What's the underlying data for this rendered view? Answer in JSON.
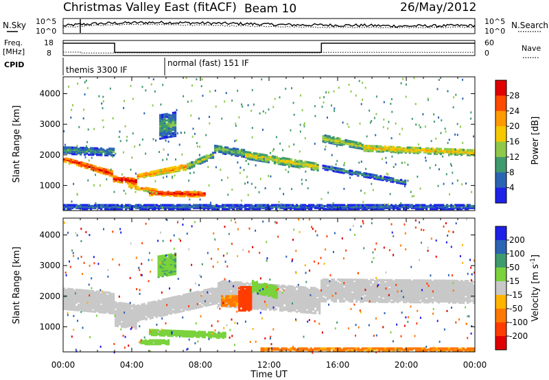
{
  "header": {
    "station": "Christmas Valley East (fitACF)",
    "beam": "Beam 10",
    "date": "26/May/2012"
  },
  "top_panels": {
    "noise": {
      "left_label": "N.Sky",
      "right_label": "N.Search",
      "left_ticks": [
        "10^5",
        "10^0"
      ],
      "right_ticks": [
        "10^5",
        "10^0"
      ],
      "series": [
        {
          "name": "N.Sky",
          "style": "solid",
          "values_log10": [
            2.6,
            3.1,
            3.4,
            3.6,
            3.7,
            3.8,
            3.8,
            3.7,
            3.6,
            3.5,
            3.4,
            3.3,
            3.1,
            3.0,
            2.9,
            2.9,
            2.8,
            2.8,
            2.7,
            2.6,
            2.5,
            2.6,
            2.6,
            2.7,
            2.7
          ]
        },
        {
          "name": "N.Search",
          "style": "dotted",
          "values_log10": [
            2.0,
            2.4,
            2.8,
            3.0,
            3.1,
            3.1,
            3.0,
            2.9,
            2.8,
            2.7,
            2.6,
            2.5,
            2.4,
            2.3,
            2.2,
            2.1,
            2.1,
            2.0,
            2.0,
            1.9,
            1.9,
            2.0,
            2.0,
            2.1,
            2.1
          ]
        }
      ],
      "spike_hour": 1.0
    },
    "frequency": {
      "left_label_line1": "Freq.",
      "left_label_line2": "[MHz]",
      "right_label": "Nave",
      "left_ticks": [
        "18",
        "8"
      ],
      "right_ticks": [
        "60",
        "0"
      ],
      "freq_steps": [
        [
          0,
          16.5
        ],
        [
          3.0,
          9.8
        ],
        [
          15.05,
          16.5
        ],
        [
          24,
          16.5
        ]
      ],
      "nave_steps": [
        [
          0,
          12
        ],
        [
          1.0,
          8
        ],
        [
          3.0,
          9
        ],
        [
          15.05,
          11
        ],
        [
          24,
          11
        ]
      ]
    },
    "cpid": {
      "label": "CPID",
      "segments": [
        {
          "label": "themis 3300 IF",
          "start_hour": 0.0
        },
        {
          "label": "normal (fast) 151 IF",
          "start_hour": 6.0
        }
      ]
    }
  },
  "chart_data": [
    {
      "type": "heatmap",
      "quantity": "Power",
      "xlabel": "",
      "ylabel": "Slant Range [km]",
      "x_ticks": [
        "00:00",
        "04:00",
        "08:00",
        "12:00",
        "16:00",
        "20:00",
        "00:00"
      ],
      "x_range_hours": [
        0,
        24
      ],
      "y_ticks": [
        1000,
        2000,
        3000,
        4000
      ],
      "y_range_km": [
        180,
        4550
      ],
      "colorbar_label": "Power [dB]",
      "colorbar_ticks": [
        28,
        24,
        20,
        16,
        12,
        8,
        4
      ],
      "colorbar_colors": [
        "#e00000",
        "#ff4a00",
        "#ff9a00",
        "#f5c800",
        "#8fc84a",
        "#3f9a6e",
        "#2c64b4",
        "#1e22e8"
      ],
      "bands": [
        {
          "t0": 0.0,
          "t1": 0.4,
          "r0": 1750,
          "r1": 1900,
          "r0b": 1700,
          "r1b": 1850,
          "level": 26
        },
        {
          "t0": 0.4,
          "t1": 2.9,
          "r0": 1700,
          "r1": 1850,
          "r0b": 1250,
          "r1b": 1450,
          "level": 27
        },
        {
          "t0": 2.9,
          "t1": 4.3,
          "r0": 1100,
          "r1": 1300,
          "r0b": 1000,
          "r1b": 1200,
          "level": 29
        },
        {
          "t0": 4.3,
          "t1": 7.2,
          "r0": 1200,
          "r1": 1350,
          "r0b": 1500,
          "r1b": 1700,
          "level": 22
        },
        {
          "t0": 7.2,
          "t1": 8.8,
          "r0": 1500,
          "r1": 1700,
          "r0b": 1900,
          "r1b": 2100,
          "level": 14
        },
        {
          "t0": 5.0,
          "t1": 8.3,
          "r0": 650,
          "r1": 800,
          "r0b": 600,
          "r1b": 780,
          "level": 27
        },
        {
          "t0": 3.8,
          "t1": 5.5,
          "r0": 900,
          "r1": 1000,
          "r0b": 700,
          "r1b": 860,
          "level": 22
        },
        {
          "t0": 8.8,
          "t1": 10.6,
          "r0": 2050,
          "r1": 2300,
          "r0b": 1900,
          "r1b": 2150,
          "level": 12
        },
        {
          "t0": 10.6,
          "t1": 14.9,
          "r0": 1850,
          "r1": 2100,
          "r0b": 1450,
          "r1b": 1700,
          "level": 16
        },
        {
          "t0": 15.1,
          "t1": 17.5,
          "r0": 2400,
          "r1": 2650,
          "r0b": 2150,
          "r1b": 2350,
          "level": 14
        },
        {
          "t0": 17.5,
          "t1": 24.0,
          "r0": 2100,
          "r1": 2300,
          "r0b": 1950,
          "r1b": 2150,
          "level": 18
        },
        {
          "t0": 15.1,
          "t1": 20.0,
          "r0": 1500,
          "r1": 1650,
          "r0b": 1000,
          "r1b": 1150,
          "level": 8
        },
        {
          "t0": 0.0,
          "t1": 3.0,
          "r0": 2000,
          "r1": 2250,
          "r0b": 1950,
          "r1b": 2200,
          "level": 9
        },
        {
          "t0": 5.6,
          "t1": 6.6,
          "r0": 2500,
          "r1": 3300,
          "r0b": 2600,
          "r1b": 3400,
          "level": 10
        },
        {
          "t0": 0.0,
          "t1": 24.0,
          "r0": 200,
          "r1": 360,
          "r0b": 200,
          "r1b": 360,
          "level": 6
        }
      ]
    },
    {
      "type": "heatmap",
      "quantity": "Velocity",
      "xlabel": "Time UT",
      "ylabel": "Slant Range [km]",
      "x_ticks": [
        "00:00",
        "04:00",
        "08:00",
        "12:00",
        "16:00",
        "20:00",
        "00:00"
      ],
      "x_range_hours": [
        0,
        24
      ],
      "y_ticks": [
        1000,
        2000,
        3000,
        4000
      ],
      "y_range_km": [
        180,
        4550
      ],
      "colorbar_label": "Velocity [m s^-1]",
      "colorbar_ticks": [
        200,
        100,
        50,
        15,
        -15,
        -50,
        -100,
        -200
      ],
      "colorbar_colors": [
        "#1e22e8",
        "#2c64b4",
        "#3f9a6e",
        "#7ad23c",
        "#c8c8c8",
        "#ffb400",
        "#ff7800",
        "#ff3c00",
        "#e00000"
      ],
      "bands": [
        {
          "t0": 0.0,
          "t1": 3.0,
          "r0": 1550,
          "r1": 2250,
          "r0b": 1400,
          "r1b": 2100,
          "v": 0
        },
        {
          "t0": 3.0,
          "t1": 4.3,
          "r0": 1000,
          "r1": 1800,
          "r0b": 900,
          "r1b": 1700,
          "v": 0
        },
        {
          "t0": 4.3,
          "t1": 9.0,
          "r0": 1150,
          "r1": 1700,
          "r0b": 1750,
          "r1b": 2300,
          "v": 0
        },
        {
          "t0": 9.0,
          "t1": 15.0,
          "r0": 1650,
          "r1": 2500,
          "r0b": 1400,
          "r1b": 2250,
          "v": 0
        },
        {
          "t0": 15.0,
          "t1": 24.0,
          "r0": 1800,
          "r1": 2550,
          "r0b": 1750,
          "r1b": 2500,
          "v": 0
        },
        {
          "t0": 5.0,
          "t1": 9.5,
          "r0": 700,
          "r1": 900,
          "r0b": 600,
          "r1b": 800,
          "v": 30
        },
        {
          "t0": 4.5,
          "t1": 6.2,
          "r0": 400,
          "r1": 560,
          "r0b": 400,
          "r1b": 560,
          "v": 30
        },
        {
          "t0": 10.2,
          "t1": 11.0,
          "r0": 1500,
          "r1": 2300,
          "r0b": 1500,
          "r1b": 2300,
          "v": -150
        },
        {
          "t0": 9.2,
          "t1": 10.2,
          "r0": 1650,
          "r1": 2000,
          "r0b": 1650,
          "r1b": 2000,
          "v": -60
        },
        {
          "t0": 11.0,
          "t1": 12.5,
          "r0": 2100,
          "r1": 2500,
          "r0b": 1900,
          "r1b": 2300,
          "v": 30
        },
        {
          "t0": 11.5,
          "t1": 24.0,
          "r0": 180,
          "r1": 300,
          "r0b": 180,
          "r1b": 300,
          "v": -60
        },
        {
          "t0": 5.5,
          "t1": 6.6,
          "r0": 2600,
          "r1": 3300,
          "r0b": 2700,
          "r1b": 3400,
          "v": 40
        }
      ]
    }
  ]
}
